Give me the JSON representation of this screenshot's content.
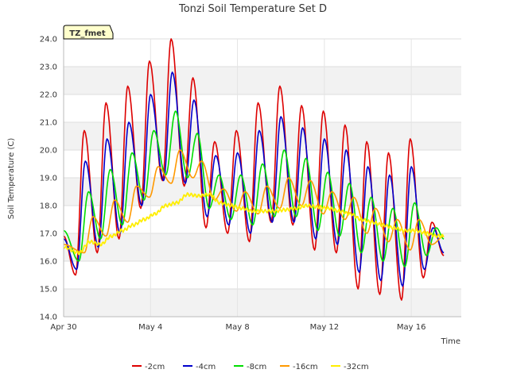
{
  "chart_data": {
    "type": "line",
    "title": "Tonzi Soil Temperature Set D",
    "xlabel": "Time",
    "ylabel": "Soil Temperature (C)",
    "xlim_days": [
      0,
      18.3
    ],
    "ylim": [
      14.0,
      24.0
    ],
    "yticks": [
      14.0,
      15.0,
      16.0,
      17.0,
      18.0,
      19.0,
      20.0,
      21.0,
      22.0,
      23.0,
      24.0
    ],
    "xticks": [
      {
        "label": "Apr 30",
        "day": 0
      },
      {
        "label": "May 4",
        "day": 4
      },
      {
        "label": "May 8",
        "day": 8
      },
      {
        "label": "May 12",
        "day": 12
      },
      {
        "label": "May 16",
        "day": 16
      }
    ],
    "site_label": "TZ_fmet",
    "legend_position": "bottom",
    "grid": true,
    "series": [
      {
        "name": "-2cm",
        "color": "#dd0000",
        "width": 1.6,
        "keys": [
          [
            0.0,
            16.9
          ],
          [
            0.55,
            15.5
          ],
          [
            0.95,
            20.7
          ],
          [
            1.55,
            16.3
          ],
          [
            1.95,
            21.7
          ],
          [
            2.55,
            16.8
          ],
          [
            2.95,
            22.3
          ],
          [
            3.55,
            17.9
          ],
          [
            3.95,
            23.2
          ],
          [
            4.55,
            18.9
          ],
          [
            4.95,
            24.0
          ],
          [
            5.55,
            18.7
          ],
          [
            5.95,
            22.6
          ],
          [
            6.55,
            17.2
          ],
          [
            6.95,
            20.3
          ],
          [
            7.55,
            17.0
          ],
          [
            7.95,
            20.7
          ],
          [
            8.55,
            16.7
          ],
          [
            8.95,
            21.7
          ],
          [
            9.55,
            17.4
          ],
          [
            9.95,
            22.3
          ],
          [
            10.55,
            17.3
          ],
          [
            10.95,
            21.6
          ],
          [
            11.55,
            16.4
          ],
          [
            11.95,
            21.4
          ],
          [
            12.55,
            16.3
          ],
          [
            12.95,
            20.9
          ],
          [
            13.55,
            15.0
          ],
          [
            13.95,
            20.3
          ],
          [
            14.55,
            14.8
          ],
          [
            14.95,
            19.9
          ],
          [
            15.55,
            14.6
          ],
          [
            15.95,
            20.4
          ],
          [
            16.55,
            15.4
          ],
          [
            16.95,
            17.4
          ],
          [
            17.5,
            16.2
          ]
        ]
      },
      {
        "name": "-4cm",
        "color": "#0000cc",
        "width": 1.6,
        "keys": [
          [
            0.0,
            16.8
          ],
          [
            0.6,
            15.7
          ],
          [
            1.0,
            19.6
          ],
          [
            1.6,
            16.5
          ],
          [
            2.0,
            20.4
          ],
          [
            2.6,
            17.0
          ],
          [
            3.0,
            21.0
          ],
          [
            3.6,
            18.0
          ],
          [
            4.0,
            22.0
          ],
          [
            4.6,
            18.9
          ],
          [
            5.0,
            22.8
          ],
          [
            5.6,
            18.8
          ],
          [
            6.0,
            21.8
          ],
          [
            6.6,
            17.6
          ],
          [
            7.0,
            19.8
          ],
          [
            7.6,
            17.3
          ],
          [
            8.0,
            19.9
          ],
          [
            8.6,
            17.0
          ],
          [
            9.0,
            20.7
          ],
          [
            9.6,
            17.4
          ],
          [
            10.0,
            21.2
          ],
          [
            10.6,
            17.4
          ],
          [
            11.0,
            20.8
          ],
          [
            11.6,
            16.8
          ],
          [
            12.0,
            20.4
          ],
          [
            12.6,
            16.6
          ],
          [
            13.0,
            20.0
          ],
          [
            13.6,
            15.6
          ],
          [
            14.0,
            19.4
          ],
          [
            14.6,
            15.3
          ],
          [
            15.0,
            19.1
          ],
          [
            15.6,
            15.1
          ],
          [
            16.0,
            19.4
          ],
          [
            16.6,
            15.7
          ],
          [
            17.0,
            17.2
          ],
          [
            17.5,
            16.3
          ]
        ]
      },
      {
        "name": "-8cm",
        "color": "#00dd00",
        "width": 1.6,
        "keys": [
          [
            0.0,
            17.1
          ],
          [
            0.7,
            16.0
          ],
          [
            1.15,
            18.5
          ],
          [
            1.7,
            16.8
          ],
          [
            2.15,
            19.3
          ],
          [
            2.7,
            17.3
          ],
          [
            3.15,
            19.9
          ],
          [
            3.7,
            18.2
          ],
          [
            4.15,
            20.7
          ],
          [
            4.7,
            19.1
          ],
          [
            5.15,
            21.4
          ],
          [
            5.7,
            19.0
          ],
          [
            6.15,
            20.6
          ],
          [
            6.7,
            17.9
          ],
          [
            7.15,
            19.1
          ],
          [
            7.7,
            17.5
          ],
          [
            8.15,
            19.1
          ],
          [
            8.7,
            17.3
          ],
          [
            9.15,
            19.5
          ],
          [
            9.7,
            17.6
          ],
          [
            10.15,
            20.0
          ],
          [
            10.7,
            17.6
          ],
          [
            11.15,
            19.7
          ],
          [
            11.7,
            17.1
          ],
          [
            12.15,
            19.2
          ],
          [
            12.7,
            16.9
          ],
          [
            13.15,
            18.8
          ],
          [
            13.7,
            16.3
          ],
          [
            14.15,
            18.3
          ],
          [
            14.7,
            16.0
          ],
          [
            15.15,
            17.9
          ],
          [
            15.7,
            15.8
          ],
          [
            16.15,
            18.1
          ],
          [
            16.7,
            16.2
          ],
          [
            17.15,
            17.2
          ],
          [
            17.5,
            16.8
          ]
        ]
      },
      {
        "name": "-16cm",
        "color": "#ff9900",
        "width": 1.6,
        "keys": [
          [
            0.0,
            16.6
          ],
          [
            0.95,
            16.3
          ],
          [
            1.35,
            17.6
          ],
          [
            1.95,
            16.9
          ],
          [
            2.35,
            18.2
          ],
          [
            2.95,
            17.4
          ],
          [
            3.35,
            18.7
          ],
          [
            3.95,
            18.3
          ],
          [
            4.35,
            19.4
          ],
          [
            4.95,
            18.8
          ],
          [
            5.35,
            20.0
          ],
          [
            5.95,
            19.0
          ],
          [
            6.35,
            19.6
          ],
          [
            6.95,
            18.2
          ],
          [
            7.35,
            18.6
          ],
          [
            7.95,
            17.8
          ],
          [
            8.35,
            18.5
          ],
          [
            8.95,
            17.7
          ],
          [
            9.35,
            18.7
          ],
          [
            9.95,
            17.9
          ],
          [
            10.35,
            19.0
          ],
          [
            10.95,
            18.0
          ],
          [
            11.35,
            18.9
          ],
          [
            11.95,
            17.7
          ],
          [
            12.35,
            18.5
          ],
          [
            12.95,
            17.5
          ],
          [
            13.35,
            18.3
          ],
          [
            13.95,
            17.0
          ],
          [
            14.35,
            17.9
          ],
          [
            14.95,
            16.7
          ],
          [
            15.35,
            17.5
          ],
          [
            15.95,
            16.4
          ],
          [
            16.35,
            17.5
          ],
          [
            16.95,
            16.6
          ],
          [
            17.5,
            16.9
          ]
        ]
      },
      {
        "name": "-32cm",
        "color": "#ffee00",
        "width": 1.8,
        "keys": [
          [
            0.0,
            16.5
          ],
          [
            0.7,
            16.3
          ],
          [
            1.2,
            16.7
          ],
          [
            1.7,
            16.6
          ],
          [
            2.2,
            16.9
          ],
          [
            2.7,
            17.1
          ],
          [
            3.2,
            17.3
          ],
          [
            3.7,
            17.5
          ],
          [
            4.2,
            17.7
          ],
          [
            4.7,
            18.0
          ],
          [
            5.2,
            18.1
          ],
          [
            5.7,
            18.4
          ],
          [
            6.2,
            18.35
          ],
          [
            6.7,
            18.4
          ],
          [
            7.2,
            18.1
          ],
          [
            7.7,
            18.0
          ],
          [
            8.2,
            17.9
          ],
          [
            8.7,
            17.8
          ],
          [
            9.2,
            17.8
          ],
          [
            9.7,
            17.8
          ],
          [
            10.2,
            17.85
          ],
          [
            10.7,
            17.9
          ],
          [
            11.2,
            18.0
          ],
          [
            11.7,
            17.95
          ],
          [
            12.2,
            17.9
          ],
          [
            12.7,
            17.8
          ],
          [
            13.2,
            17.7
          ],
          [
            13.7,
            17.5
          ],
          [
            14.2,
            17.4
          ],
          [
            14.7,
            17.3
          ],
          [
            15.2,
            17.2
          ],
          [
            15.7,
            17.1
          ],
          [
            16.2,
            17.1
          ],
          [
            16.7,
            17.0
          ],
          [
            17.2,
            16.9
          ],
          [
            17.5,
            16.9
          ]
        ]
      }
    ]
  }
}
